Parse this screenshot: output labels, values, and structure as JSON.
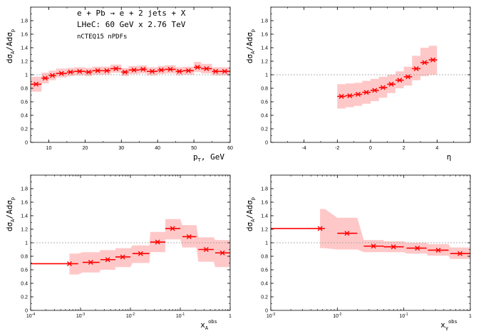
{
  "colors": {
    "series": "#ff0000",
    "band": "#ffc8c8",
    "reference": "#999999",
    "axes": "#000000"
  },
  "annotations": [
    "e + Pb → e + 2 jets + X",
    "LHeC: 60 GeV x 2.76 TeV",
    "nCTEQ15 nPDFs"
  ],
  "ylabel": {
    "main": "dσ",
    "sub1": "A",
    "mid": "/Adσ",
    "sub2": "p"
  },
  "chart_data": [
    {
      "type": "line",
      "xscale": "linear",
      "xlim": [
        5,
        60
      ],
      "ylim": [
        0,
        2
      ],
      "xticks": [
        "10",
        "20",
        "30",
        "40",
        "50",
        "60"
      ],
      "xtick_values": [
        10,
        20,
        30,
        40,
        50,
        60
      ],
      "yticks": [
        "0",
        "0.2",
        "0.4",
        "0.6",
        "0.8",
        "1",
        "1.2",
        "1.4",
        "1.6",
        "1.8"
      ],
      "ytick_values": [
        0,
        0.2,
        0.4,
        0.6,
        0.8,
        1,
        1.2,
        1.4,
        1.6,
        1.8
      ],
      "xlabel": {
        "main": "p",
        "sub": "T",
        "rest": ", GeV"
      },
      "reference_line": 1,
      "grid": false,
      "points": [
        {
          "x": 6.5,
          "xerr": 1.5,
          "y": 0.86,
          "lo": 0.75,
          "hi": 0.97
        },
        {
          "x": 9,
          "xerr": 1,
          "y": 0.95,
          "lo": 0.87,
          "hi": 1.03
        },
        {
          "x": 11,
          "xerr": 1,
          "y": 0.99,
          "lo": 0.92,
          "hi": 1.06
        },
        {
          "x": 13.5,
          "xerr": 1.5,
          "y": 1.02,
          "lo": 0.96,
          "hi": 1.09
        },
        {
          "x": 16,
          "xerr": 1,
          "y": 1.04,
          "lo": 0.98,
          "hi": 1.1
        },
        {
          "x": 18.5,
          "xerr": 1.5,
          "y": 1.05,
          "lo": 0.99,
          "hi": 1.11
        },
        {
          "x": 21,
          "xerr": 1,
          "y": 1.04,
          "lo": 0.98,
          "hi": 1.1
        },
        {
          "x": 23.5,
          "xerr": 1.5,
          "y": 1.06,
          "lo": 1.0,
          "hi": 1.12
        },
        {
          "x": 26,
          "xerr": 1,
          "y": 1.06,
          "lo": 1.0,
          "hi": 1.12
        },
        {
          "x": 28.5,
          "xerr": 1.5,
          "y": 1.09,
          "lo": 1.03,
          "hi": 1.15
        },
        {
          "x": 31,
          "xerr": 1,
          "y": 1.04,
          "lo": 0.98,
          "hi": 1.1
        },
        {
          "x": 33.5,
          "xerr": 1.5,
          "y": 1.07,
          "lo": 1.01,
          "hi": 1.13
        },
        {
          "x": 36,
          "xerr": 1,
          "y": 1.08,
          "lo": 1.02,
          "hi": 1.14
        },
        {
          "x": 38.5,
          "xerr": 1.5,
          "y": 1.05,
          "lo": 0.99,
          "hi": 1.11
        },
        {
          "x": 41,
          "xerr": 1,
          "y": 1.07,
          "lo": 1.01,
          "hi": 1.13
        },
        {
          "x": 43.5,
          "xerr": 1.5,
          "y": 1.08,
          "lo": 1.02,
          "hi": 1.14
        },
        {
          "x": 46,
          "xerr": 1,
          "y": 1.05,
          "lo": 0.99,
          "hi": 1.11
        },
        {
          "x": 48.5,
          "xerr": 1.5,
          "y": 1.06,
          "lo": 1.0,
          "hi": 1.12
        },
        {
          "x": 51,
          "xerr": 1,
          "y": 1.11,
          "lo": 1.04,
          "hi": 1.19
        },
        {
          "x": 53.5,
          "xerr": 1.5,
          "y": 1.09,
          "lo": 1.02,
          "hi": 1.16
        },
        {
          "x": 56,
          "xerr": 1,
          "y": 1.05,
          "lo": 0.99,
          "hi": 1.11
        },
        {
          "x": 58.5,
          "xerr": 1.5,
          "y": 1.05,
          "lo": 0.99,
          "hi": 1.11
        }
      ]
    },
    {
      "type": "line",
      "xscale": "linear",
      "xlim": [
        -6,
        6
      ],
      "ylim": [
        0,
        2
      ],
      "xticks": [
        "-4",
        "-2",
        "0",
        "2",
        "4"
      ],
      "xtick_values": [
        -4,
        -2,
        0,
        2,
        4
      ],
      "yticks": [
        "0",
        "0.2",
        "0.4",
        "0.6",
        "0.8",
        "1",
        "1.2",
        "1.4",
        "1.6",
        "1.8"
      ],
      "ytick_values": [
        0,
        0.2,
        0.4,
        0.6,
        0.8,
        1,
        1.2,
        1.4,
        1.6,
        1.8
      ],
      "xlabel": {
        "main": "η",
        "sub": "",
        "rest": ""
      },
      "reference_line": 1,
      "grid": false,
      "points": [
        {
          "x": -1.75,
          "xerr": 0.25,
          "y": 0.68,
          "lo": 0.5,
          "hi": 0.86
        },
        {
          "x": -1.25,
          "xerr": 0.25,
          "y": 0.69,
          "lo": 0.52,
          "hi": 0.87
        },
        {
          "x": -0.75,
          "xerr": 0.25,
          "y": 0.71,
          "lo": 0.54,
          "hi": 0.88
        },
        {
          "x": -0.25,
          "xerr": 0.25,
          "y": 0.74,
          "lo": 0.57,
          "hi": 0.91
        },
        {
          "x": 0.25,
          "xerr": 0.25,
          "y": 0.77,
          "lo": 0.61,
          "hi": 0.94
        },
        {
          "x": 0.75,
          "xerr": 0.25,
          "y": 0.81,
          "lo": 0.66,
          "hi": 0.97
        },
        {
          "x": 1.25,
          "xerr": 0.25,
          "y": 0.86,
          "lo": 0.73,
          "hi": 1.0
        },
        {
          "x": 1.75,
          "xerr": 0.25,
          "y": 0.92,
          "lo": 0.8,
          "hi": 1.05
        },
        {
          "x": 2.25,
          "xerr": 0.25,
          "y": 0.97,
          "lo": 0.84,
          "hi": 1.12
        },
        {
          "x": 2.75,
          "xerr": 0.25,
          "y": 1.09,
          "lo": 0.92,
          "hi": 1.28
        },
        {
          "x": 3.25,
          "xerr": 0.25,
          "y": 1.18,
          "lo": 0.98,
          "hi": 1.4
        },
        {
          "x": 3.75,
          "xerr": 0.25,
          "y": 1.22,
          "lo": 1.0,
          "hi": 1.43
        }
      ]
    },
    {
      "type": "line",
      "xscale": "log",
      "xlim": [
        0.0001,
        1
      ],
      "ylim": [
        0,
        2
      ],
      "xticks": [
        "10",
        "10",
        "10",
        "10",
        "1"
      ],
      "xtick_exponents": [
        "-4",
        "-3",
        "-2",
        "-1",
        ""
      ],
      "xtick_values": [
        0.0001,
        0.001,
        0.01,
        0.1,
        1
      ],
      "yticks": [
        "0",
        "0.2",
        "0.4",
        "0.6",
        "0.8",
        "1",
        "1.2",
        "1.4",
        "1.6",
        "1.8"
      ],
      "ytick_values": [
        0,
        0.2,
        0.4,
        0.6,
        0.8,
        1,
        1.2,
        1.4,
        1.6,
        1.8
      ],
      "xlabel": {
        "main": "x",
        "sub": "A",
        "sup": "obs"
      },
      "reference_line": 1,
      "grid": false,
      "points": [
        {
          "x": 0.0006,
          "xlo": 0.0001,
          "xhi": 0.0006,
          "y": 0.69,
          "lo": null,
          "hi": null
        },
        {
          "x": 0.0006,
          "xlo": 0.0006,
          "xhi": 0.0009,
          "y": 0.69,
          "lo": 0.53,
          "hi": 0.84
        },
        {
          "x": 0.0016,
          "xlo": 0.0011,
          "xhi": 0.0024,
          "y": 0.71,
          "lo": 0.56,
          "hi": 0.86
        },
        {
          "x": 0.0035,
          "xlo": 0.0025,
          "xhi": 0.005,
          "y": 0.75,
          "lo": 0.6,
          "hi": 0.89
        },
        {
          "x": 0.007,
          "xlo": 0.005,
          "xhi": 0.01,
          "y": 0.79,
          "lo": 0.64,
          "hi": 0.92
        },
        {
          "x": 0.016,
          "xlo": 0.011,
          "xhi": 0.024,
          "y": 0.84,
          "lo": 0.7,
          "hi": 0.96
        },
        {
          "x": 0.035,
          "xlo": 0.025,
          "xhi": 0.05,
          "y": 1.01,
          "lo": 0.86,
          "hi": 1.16
        },
        {
          "x": 0.07,
          "xlo": 0.05,
          "xhi": 0.1,
          "y": 1.21,
          "lo": 1.05,
          "hi": 1.35
        },
        {
          "x": 0.15,
          "xlo": 0.11,
          "xhi": 0.21,
          "y": 1.09,
          "lo": 0.93,
          "hi": 1.26
        },
        {
          "x": 0.33,
          "xlo": 0.23,
          "xhi": 0.47,
          "y": 0.9,
          "lo": 0.72,
          "hi": 1.08
        },
        {
          "x": 0.7,
          "xlo": 0.5,
          "xhi": 1,
          "y": 0.85,
          "lo": 0.64,
          "hi": 1.04
        }
      ]
    },
    {
      "type": "line",
      "xscale": "log",
      "xlim": [
        0.001,
        1
      ],
      "ylim": [
        0,
        2
      ],
      "xticks": [
        "10",
        "10",
        "10",
        "1"
      ],
      "xtick_exponents": [
        "-3",
        "-2",
        "-1",
        ""
      ],
      "xtick_values": [
        0.001,
        0.01,
        0.1,
        1
      ],
      "yticks": [
        "0",
        "0.2",
        "0.4",
        "0.6",
        "0.8",
        "1",
        "1.2",
        "1.4",
        "1.6",
        "1.8"
      ],
      "ytick_values": [
        0,
        0.2,
        0.4,
        0.6,
        0.8,
        1,
        1.2,
        1.4,
        1.6,
        1.8
      ],
      "xlabel": {
        "main": "x",
        "sub": "γ",
        "sup": "obs"
      },
      "reference_line": 1,
      "grid": false,
      "points": [
        {
          "x": 0.0055,
          "xlo": 0.001,
          "xhi": 0.0055,
          "y": 1.21,
          "lo": null,
          "hi": null
        },
        {
          "x": 0.0055,
          "xlo": 0.0055,
          "xhi": 0.0065,
          "y": 1.21,
          "lo": 0.92,
          "hi": 1.5
        },
        {
          "x": 0.014,
          "xlo": 0.01,
          "xhi": 0.02,
          "y": 1.14,
          "lo": 0.9,
          "hi": 1.37
        },
        {
          "x": 0.035,
          "xlo": 0.025,
          "xhi": 0.05,
          "y": 0.95,
          "lo": 0.86,
          "hi": 1.04
        },
        {
          "x": 0.07,
          "xlo": 0.05,
          "xhi": 0.1,
          "y": 0.94,
          "lo": 0.86,
          "hi": 1.02
        },
        {
          "x": 0.16,
          "xlo": 0.11,
          "xhi": 0.22,
          "y": 0.92,
          "lo": 0.84,
          "hi": 1.0
        },
        {
          "x": 0.33,
          "xlo": 0.23,
          "xhi": 0.47,
          "y": 0.89,
          "lo": 0.81,
          "hi": 0.98
        },
        {
          "x": 0.7,
          "xlo": 0.5,
          "xhi": 1,
          "y": 0.84,
          "lo": 0.76,
          "hi": 0.93
        }
      ]
    }
  ]
}
